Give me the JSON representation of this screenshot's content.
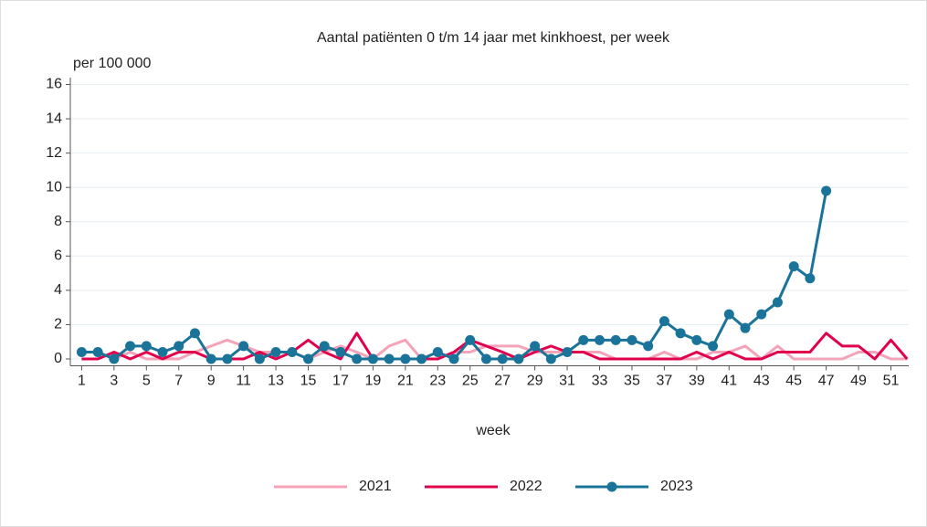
{
  "chart_data": {
    "type": "line",
    "title": "Aantal patiënten 0 t/m 14 jaar met kinkhoest, per week",
    "y_label": "per 100 000",
    "x_label": "week",
    "x": [
      1,
      2,
      3,
      4,
      5,
      6,
      7,
      8,
      9,
      10,
      11,
      12,
      13,
      14,
      15,
      16,
      17,
      18,
      19,
      20,
      21,
      22,
      23,
      24,
      25,
      26,
      27,
      28,
      29,
      30,
      31,
      32,
      33,
      34,
      35,
      36,
      37,
      38,
      39,
      40,
      41,
      42,
      43,
      44,
      45,
      46,
      47,
      48,
      49,
      50,
      51,
      52
    ],
    "series": [
      {
        "name": "2021",
        "color": "#f4a3b8",
        "marker": false,
        "values": [
          0.4,
          0.4,
          0,
          0.4,
          0,
          0,
          0,
          0.4,
          0.75,
          1.1,
          0.75,
          0.4,
          0.4,
          0.4,
          0,
          0.4,
          0.75,
          0.4,
          0,
          0.75,
          1.1,
          0,
          0,
          0.4,
          0.4,
          0.75,
          0.75,
          0.75,
          0.4,
          0.4,
          0.4,
          0.4,
          0.4,
          0,
          0,
          0,
          0.4,
          0,
          0,
          0.4,
          0.4,
          0.75,
          0,
          0.75,
          0,
          0,
          0,
          0,
          0.4,
          0.4,
          0,
          0
        ]
      },
      {
        "name": "2022",
        "color": "#e0004d",
        "marker": false,
        "values": [
          0,
          0,
          0.4,
          0,
          0.4,
          0,
          0.4,
          0.4,
          0,
          0,
          0,
          0.4,
          0,
          0.4,
          1.1,
          0.4,
          0,
          1.5,
          0,
          0,
          0,
          0,
          0,
          0.4,
          1.1,
          0.75,
          0.4,
          0,
          0.4,
          0.75,
          0.4,
          0.4,
          0,
          0,
          0,
          0,
          0,
          0,
          0.4,
          0,
          0.4,
          0,
          0,
          0.4,
          0.4,
          0.4,
          1.5,
          0.75,
          0.75,
          0,
          1.1,
          0
        ]
      },
      {
        "name": "2023",
        "color": "#1a7399",
        "marker": true,
        "values": [
          0.4,
          0.4,
          0,
          0.75,
          0.75,
          0.4,
          0.75,
          1.5,
          0,
          0,
          0.75,
          0,
          0.4,
          0.4,
          0,
          0.75,
          0.4,
          0,
          0,
          0,
          0,
          0,
          0.4,
          0,
          1.1,
          0,
          0,
          0,
          0.75,
          0,
          0.4,
          1.1,
          1.1,
          1.1,
          1.1,
          0.75,
          2.2,
          1.5,
          1.1,
          0.75,
          2.6,
          1.8,
          2.6,
          3.3,
          5.4,
          4.7,
          9.8,
          null,
          null,
          null,
          null,
          null
        ]
      }
    ],
    "xlim": [
      0.3,
      52.1
    ],
    "xticks": [
      1,
      3,
      5,
      7,
      9,
      11,
      13,
      15,
      17,
      19,
      21,
      23,
      25,
      27,
      29,
      31,
      33,
      35,
      37,
      39,
      41,
      43,
      45,
      47,
      49,
      51
    ],
    "ylim": [
      -0.4,
      16.4
    ],
    "yticks": [
      0,
      2,
      4,
      6,
      8,
      10,
      12,
      14,
      16
    ],
    "grid": true,
    "legend": "bottom"
  }
}
